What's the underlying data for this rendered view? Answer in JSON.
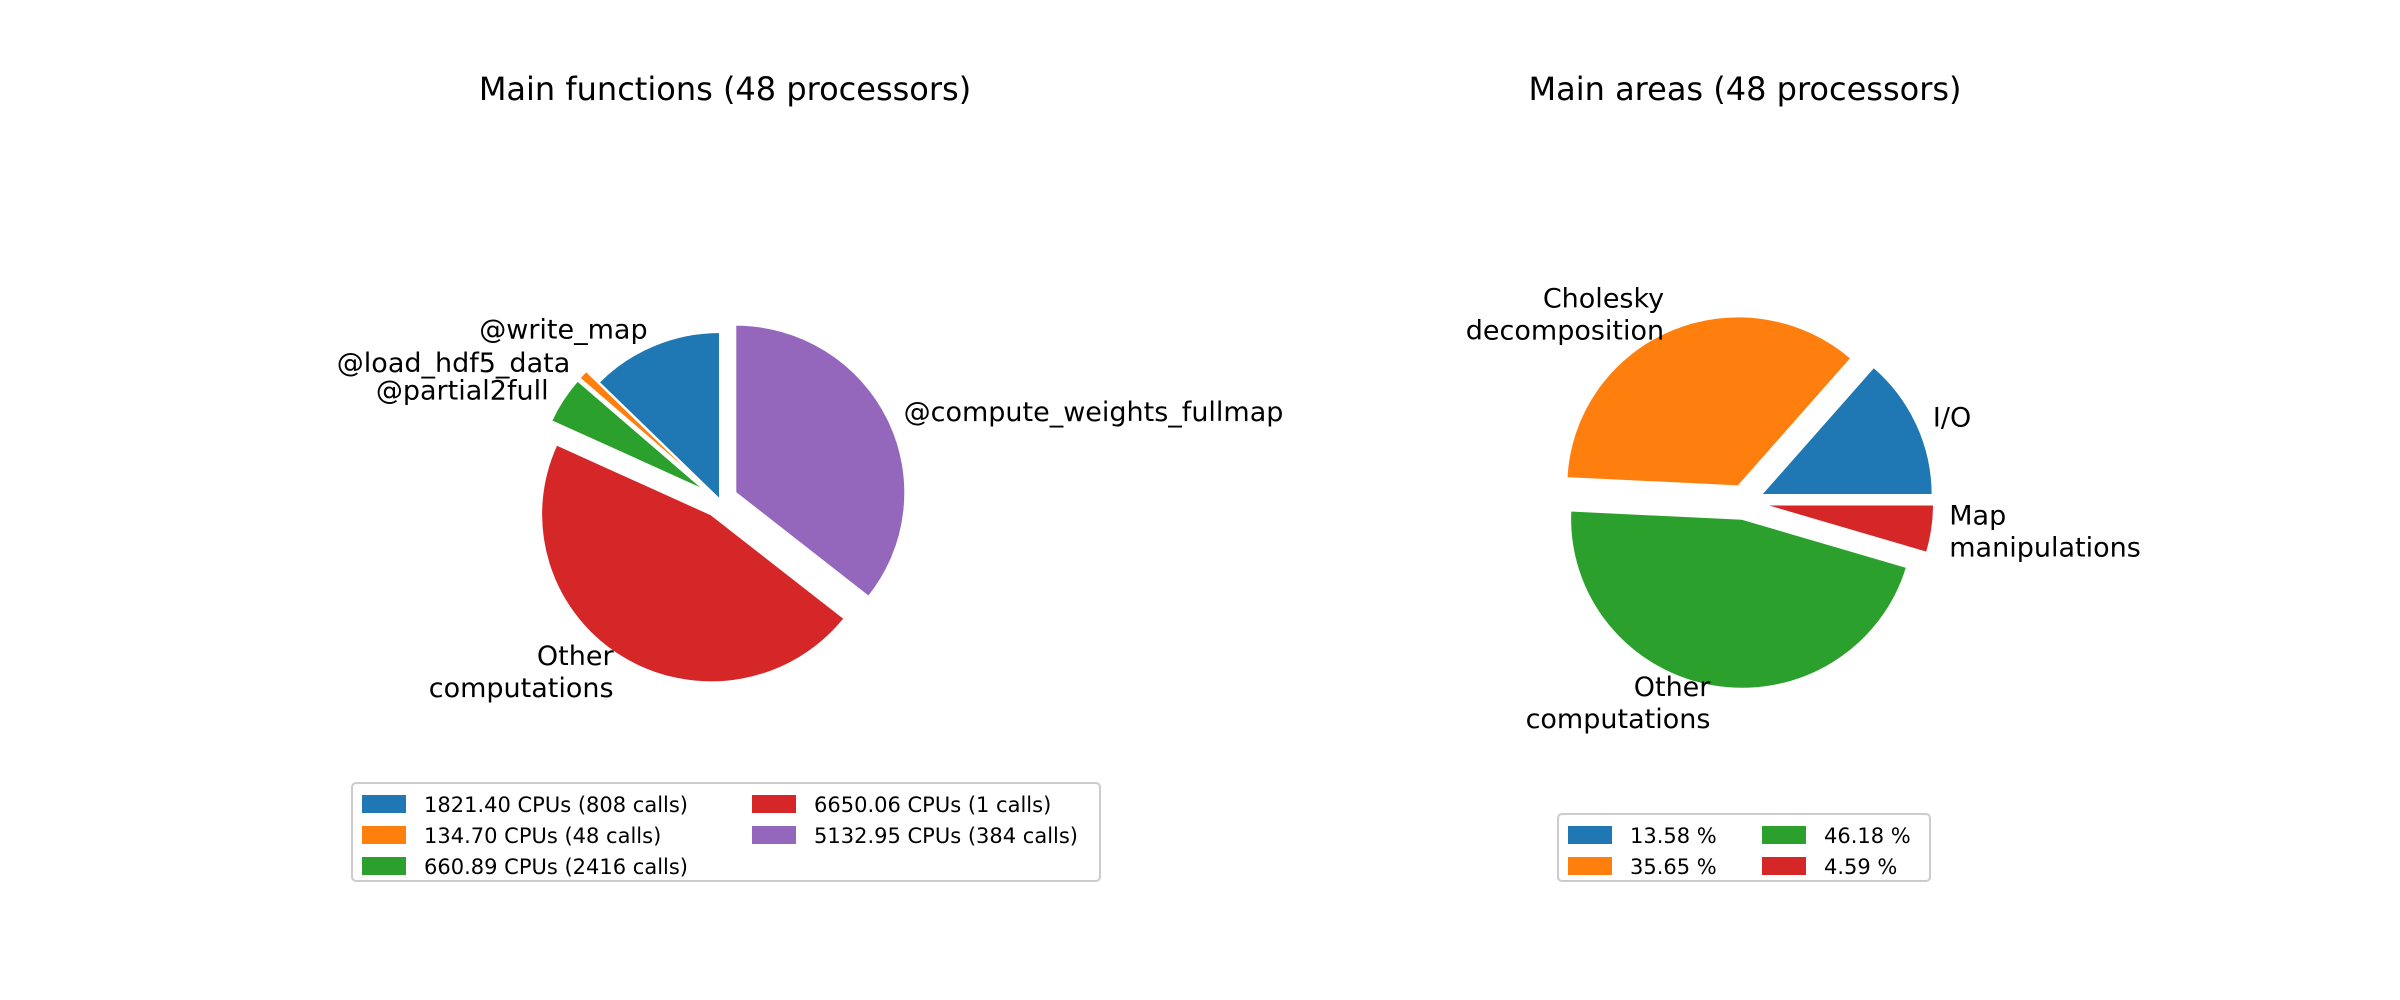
{
  "chart_data": [
    {
      "type": "pie",
      "title": "Main functions (48 processors)",
      "slices": [
        {
          "label": "@write_map",
          "value": 1821.4,
          "legend": "1821.40 CPUs (808 calls)",
          "color": "#1f77b4",
          "explode": 0.0
        },
        {
          "label": "@load_hdf5_data",
          "value": 134.7,
          "legend": "134.70 CPUs (48 calls)",
          "color": "#ff7f0e",
          "explode": 0.1
        },
        {
          "label": "@partial2full",
          "value": 660.89,
          "legend": "660.89 CPUs (2416 calls)",
          "color": "#2ca02c",
          "explode": 0.1
        },
        {
          "label": "Other\ncomputations",
          "value": 6650.06,
          "legend": "6650.06 CPUs (1 calls)",
          "color": "#d62728",
          "explode": 0.1
        },
        {
          "label": "@compute_weights_fullmap",
          "value": 5132.95,
          "legend": "5132.95 CPUs (384 calls)",
          "color": "#9467bd",
          "explode": 0.1
        }
      ],
      "start_angle": 90,
      "direction": "counterclockwise",
      "legend_position": "bottom",
      "legend_columns": 2
    },
    {
      "type": "pie",
      "title": "Main areas (48 processors)",
      "slices": [
        {
          "label": "I/O",
          "value": 13.58,
          "legend": "13.58 %",
          "color": "#1f77b4",
          "explode": 0.1
        },
        {
          "label": "Cholesky\ndecomposition",
          "value": 35.65,
          "legend": "35.65 %",
          "color": "#ff7f0e",
          "explode": 0.1
        },
        {
          "label": "Other\ncomputations",
          "value": 46.18,
          "legend": "46.18 %",
          "color": "#2ca02c",
          "explode": 0.1
        },
        {
          "label": "Map\nmanipulations",
          "value": 4.59,
          "legend": "4.59 %",
          "color": "#d62728",
          "explode": 0.1
        }
      ],
      "start_angle": 0,
      "direction": "counterclockwise",
      "legend_position": "bottom",
      "legend_columns": 2
    }
  ]
}
